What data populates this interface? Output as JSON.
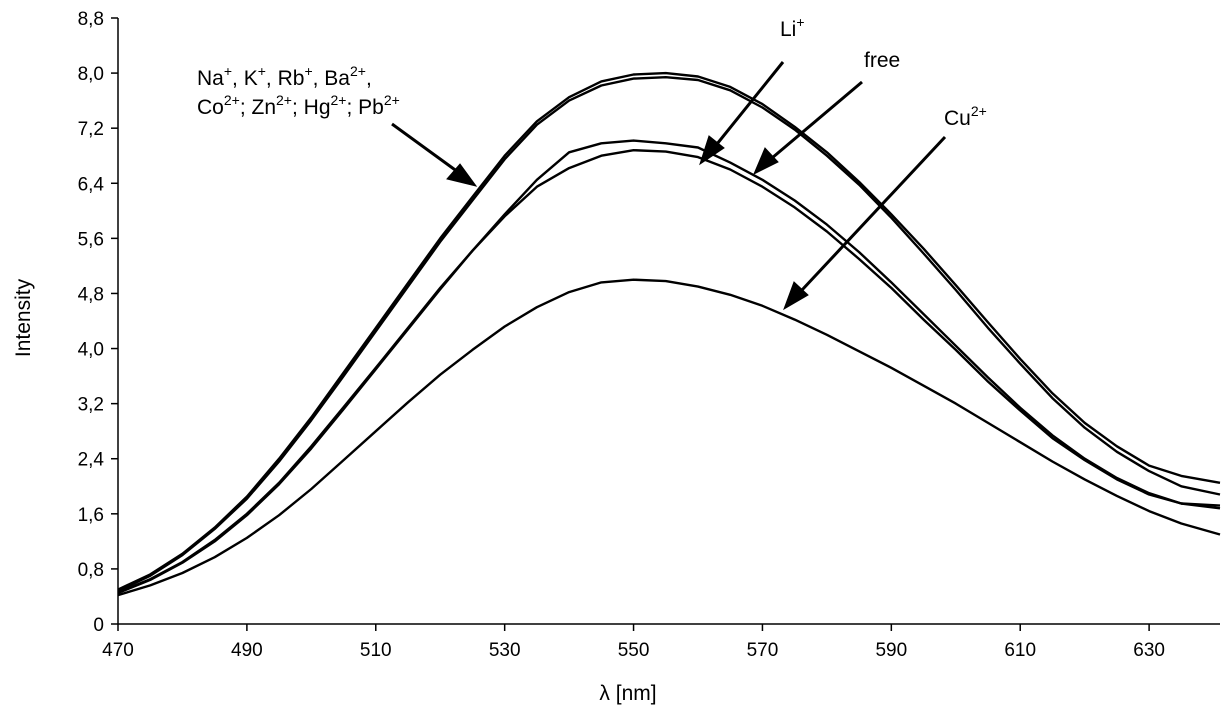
{
  "chart_data": {
    "type": "line",
    "xlabel": "λ [nm]",
    "ylabel": "Intensity",
    "xlim": [
      470,
      641
    ],
    "ylim": [
      0,
      8.8
    ],
    "x_ticks": [
      470,
      490,
      510,
      530,
      550,
      570,
      590,
      610,
      630
    ],
    "y_ticks": [
      0,
      0.8,
      1.6,
      2.4,
      3.2,
      4.0,
      4.8,
      5.6,
      6.4,
      7.2,
      8.0,
      8.8
    ],
    "y_tick_labels": [
      "0",
      "0,8",
      "1,6",
      "2,4",
      "3,2",
      "4,0",
      "4,8",
      "5,6",
      "6,4",
      "7,2",
      "8,0",
      "8,8"
    ],
    "x": [
      470,
      475,
      480,
      485,
      490,
      495,
      500,
      505,
      510,
      515,
      520,
      525,
      530,
      535,
      540,
      545,
      550,
      555,
      560,
      565,
      570,
      575,
      580,
      585,
      590,
      595,
      600,
      605,
      610,
      615,
      620,
      625,
      630,
      635,
      641
    ],
    "series": [
      {
        "values": [
          0.5,
          0.72,
          1.02,
          1.4,
          1.85,
          2.4,
          3.0,
          3.65,
          4.3,
          4.95,
          5.6,
          6.2,
          6.8,
          7.3,
          7.65,
          7.88,
          7.98,
          8.0,
          7.95,
          7.8,
          7.55,
          7.22,
          6.85,
          6.42,
          5.95,
          5.45,
          4.92,
          4.38,
          3.85,
          3.35,
          2.92,
          2.58,
          2.3,
          2.15,
          2.05
        ]
      },
      {
        "values": [
          0.48,
          0.7,
          1.0,
          1.38,
          1.82,
          2.36,
          2.96,
          3.6,
          4.25,
          4.9,
          5.55,
          6.15,
          6.75,
          7.25,
          7.6,
          7.82,
          7.92,
          7.94,
          7.9,
          7.75,
          7.5,
          7.18,
          6.8,
          6.38,
          5.9,
          5.38,
          4.85,
          4.3,
          3.78,
          3.28,
          2.85,
          2.5,
          2.22,
          2.0,
          1.88
        ]
      },
      {
        "values": [
          0.46,
          0.65,
          0.9,
          1.22,
          1.6,
          2.05,
          2.58,
          3.15,
          3.72,
          4.3,
          4.88,
          5.42,
          5.92,
          6.35,
          6.62,
          6.8,
          6.88,
          6.86,
          6.78,
          6.6,
          6.35,
          6.05,
          5.7,
          5.3,
          4.88,
          4.42,
          3.98,
          3.52,
          3.1,
          2.7,
          2.38,
          2.1,
          1.88,
          1.75,
          1.72
        ]
      },
      {
        "values": [
          0.45,
          0.64,
          0.89,
          1.2,
          1.58,
          2.03,
          2.55,
          3.12,
          3.7,
          4.28,
          4.86,
          5.42,
          5.95,
          6.45,
          6.85,
          6.98,
          7.02,
          6.98,
          6.92,
          6.7,
          6.45,
          6.15,
          5.8,
          5.4,
          4.96,
          4.5,
          4.04,
          3.58,
          3.14,
          2.74,
          2.4,
          2.12,
          1.9,
          1.75,
          1.68
        ]
      },
      {
        "values": [
          0.42,
          0.56,
          0.74,
          0.97,
          1.25,
          1.58,
          1.96,
          2.38,
          2.8,
          3.22,
          3.62,
          3.98,
          4.32,
          4.6,
          4.82,
          4.96,
          5.0,
          4.98,
          4.9,
          4.78,
          4.62,
          4.42,
          4.2,
          3.96,
          3.72,
          3.46,
          3.2,
          2.92,
          2.64,
          2.36,
          2.1,
          1.86,
          1.64,
          1.46,
          1.3
        ]
      }
    ],
    "annotations": [
      {
        "text_parts": [
          "Na",
          "+",
          ", K",
          "+",
          ", Rb",
          "+",
          ", Ba",
          "2+",
          ","
        ],
        "sup_flags": [
          false,
          true,
          false,
          true,
          false,
          true,
          false,
          true,
          false
        ]
      },
      {
        "text_parts": [
          "Co",
          "2+",
          "; Zn",
          "2+",
          "; Hg",
          "2+",
          "; Pb",
          "2+"
        ],
        "sup_flags": [
          false,
          true,
          false,
          true,
          false,
          true,
          false,
          true
        ]
      },
      {
        "text_parts": [
          "Li",
          "+"
        ],
        "sup_flags": [
          false,
          true
        ]
      },
      {
        "text_parts": [
          "free"
        ],
        "sup_flags": [
          false
        ]
      },
      {
        "text_parts": [
          "Cu",
          "2+"
        ],
        "sup_flags": [
          false,
          true
        ]
      }
    ]
  }
}
